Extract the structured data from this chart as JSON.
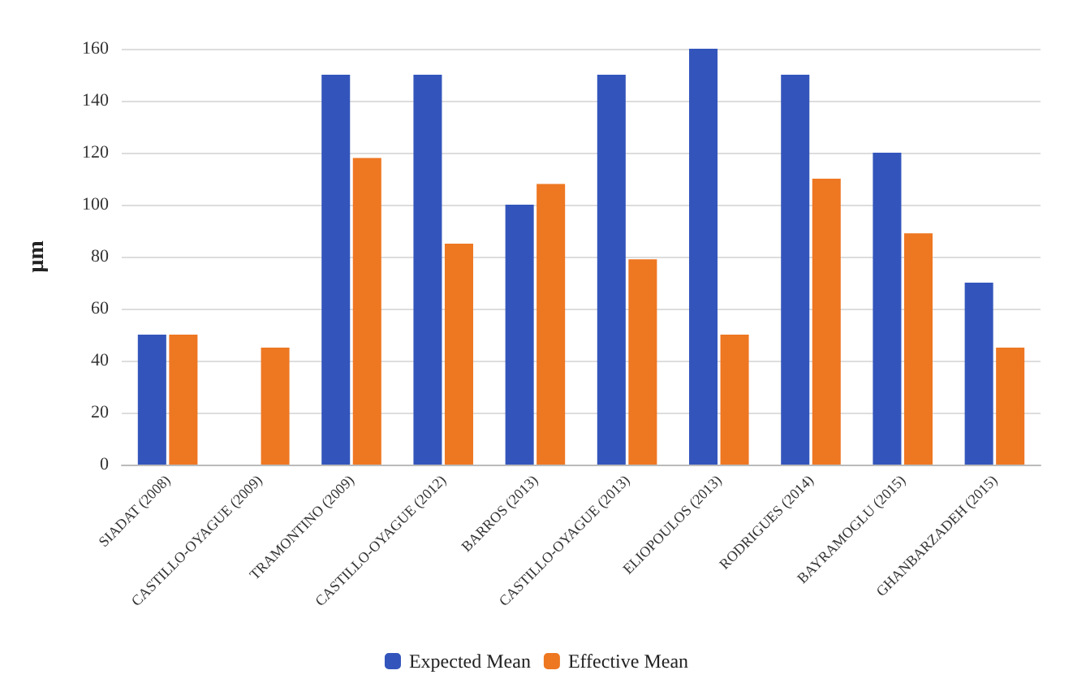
{
  "chart_data": {
    "type": "bar",
    "ylabel": "µm",
    "categories": [
      "SIADAT (2008)",
      "CASTILLO-OYAGUE (2009)",
      "TRAMONTINO (2009)",
      "CASTILLO-OYAGUE (2012)",
      "BARROS (2013)",
      "CASTILLO-OYAGUE (2013)",
      "ELIOPOULOS (2013)",
      "RODRIGUES (2014)",
      "BAYRAMOGLU (2015)",
      "GHANBARZADEH (2015)"
    ],
    "series": [
      {
        "name": "Expected Mean",
        "color": "#3355bb",
        "values": [
          50,
          0,
          150,
          150,
          100,
          150,
          160,
          150,
          120,
          70
        ]
      },
      {
        "name": "Effective Mean",
        "color": "#ee7722",
        "values": [
          50,
          45,
          118,
          85,
          108,
          79,
          50,
          110,
          89,
          45
        ]
      }
    ],
    "ylim": [
      0,
      160
    ],
    "yticks": [
      0,
      20,
      40,
      60,
      80,
      100,
      120,
      140,
      160
    ],
    "grid": "y",
    "legend": "bottom"
  }
}
